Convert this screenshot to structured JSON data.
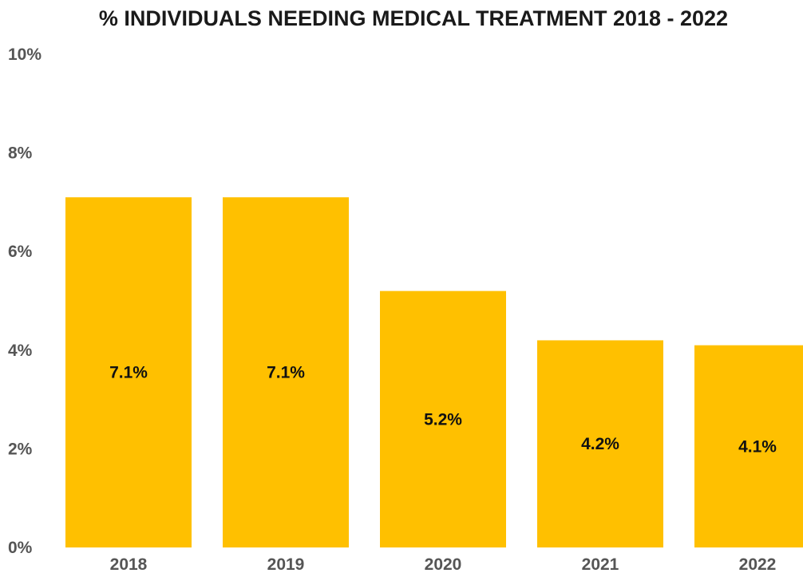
{
  "chart_data": {
    "type": "bar",
    "title": "% INDIVIDUALS NEEDING MEDICAL TREATMENT 2018 - 2022",
    "categories": [
      "2018",
      "2019",
      "2020",
      "2021",
      "2022"
    ],
    "values": [
      7.1,
      7.1,
      5.2,
      4.2,
      4.1
    ],
    "data_labels": [
      "7.1%",
      "7.1%",
      "5.2%",
      "4.2%",
      "4.1%"
    ],
    "ylim": [
      0,
      10
    ],
    "yticks": [
      0,
      2,
      4,
      6,
      8,
      10
    ],
    "ytick_labels": [
      "0%",
      "2%",
      "4%",
      "6%",
      "8%",
      "10%"
    ],
    "xlabel": "",
    "ylabel": "",
    "grid": false,
    "legend": "none",
    "bar_color": "#FFC000"
  }
}
